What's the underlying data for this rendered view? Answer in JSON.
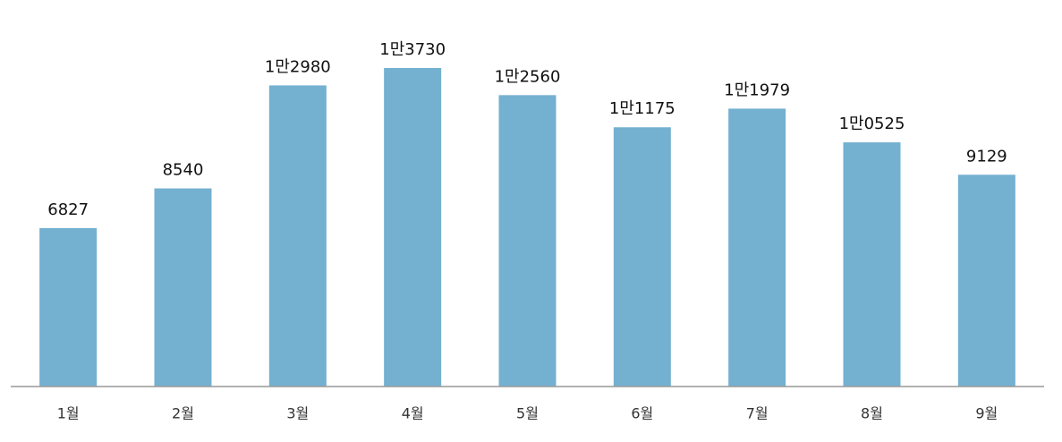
{
  "chart_data": {
    "type": "bar",
    "categories": [
      "1월",
      "2월",
      "3월",
      "4월",
      "5월",
      "6월",
      "7월",
      "8월",
      "9월"
    ],
    "values": [
      6827,
      8540,
      12980,
      13730,
      12560,
      11175,
      11979,
      10525,
      9129
    ],
    "value_labels": [
      "6827",
      "8540",
      "1만2980",
      "1만3730",
      "1만2560",
      "1만1175",
      "1만1979",
      "1만0525",
      "9129"
    ],
    "color": "#74b0d0"
  }
}
